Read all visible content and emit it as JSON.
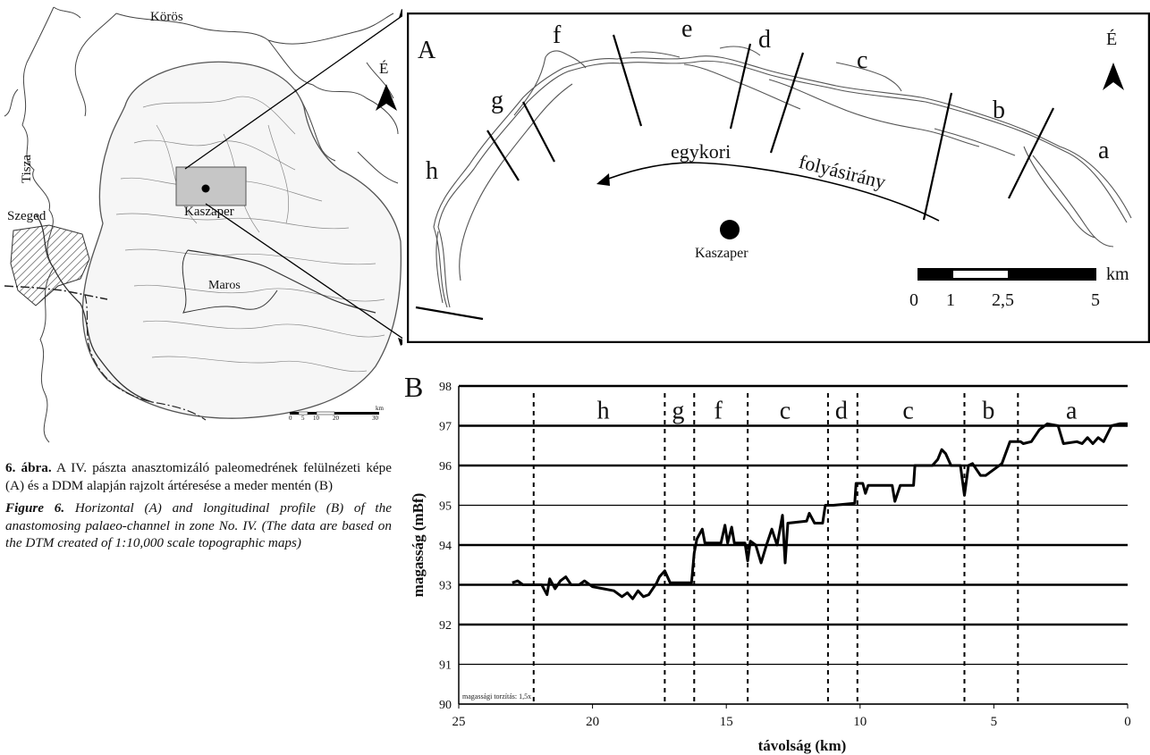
{
  "overview_map": {
    "labels": {
      "koros": "Körös",
      "tisza": "Tisza",
      "szeged": "Szeged",
      "kaszaper": "Kaszaper",
      "maros": "Maros",
      "north": "É"
    },
    "scale": {
      "ticks": [
        "0",
        "5",
        "10",
        "20",
        "30"
      ],
      "unit": "km"
    }
  },
  "panel_a": {
    "panel_label": "A",
    "north": "É",
    "segment_labels": [
      "a",
      "b",
      "c",
      "d",
      "e",
      "f",
      "g",
      "h"
    ],
    "flow_label_1": "egykori",
    "flow_label_2": "folyásirány",
    "town": "Kaszaper",
    "scale": {
      "ticks": [
        "0",
        "1",
        "2,5",
        "5"
      ],
      "unit": "km"
    }
  },
  "caption": {
    "hu_label": "6. ábra.",
    "hu_text": "A IV. pászta anasztomizáló paleomed­rének felülnézeti képe (A) és a DDM alapján rajzolt ártéresése a meder mentén (B)",
    "en_label": "Figure 6.",
    "en_text": "Horizontal (A) and longitudinal profile (B) of the anastomosing palaeo-channel in zone No. IV. (The data are based on the DTM created of 1:10,000 scale topographic maps)"
  },
  "chart_data": {
    "type": "line",
    "panel_label": "B",
    "xlabel": "távolság (km)",
    "ylabel": "magasság (mBf)",
    "xlim": [
      25,
      0
    ],
    "ylim": [
      90,
      98
    ],
    "xticks": [
      "25",
      "20",
      "15",
      "10",
      "5",
      "0"
    ],
    "yticks": [
      "90",
      "91",
      "92",
      "93",
      "94",
      "95",
      "96",
      "97",
      "98"
    ],
    "note": "magassági torzítás: 1,5x",
    "segment_boundaries_km": [
      22.2,
      17.3,
      16.2,
      14.2,
      11.2,
      10.1,
      6.1,
      4.1
    ],
    "segment_labels": [
      {
        "label": "h",
        "x": 19.6
      },
      {
        "label": "g",
        "x": 16.8
      },
      {
        "label": "f",
        "x": 15.3
      },
      {
        "label": "c",
        "x": 12.8
      },
      {
        "label": "d",
        "x": 10.7
      },
      {
        "label": "c",
        "x": 8.2
      },
      {
        "label": "b",
        "x": 5.2
      },
      {
        "label": "a",
        "x": 2.1
      }
    ],
    "series": [
      {
        "values": [
          [
            23.0,
            93.05
          ],
          [
            22.8,
            93.1
          ],
          [
            22.6,
            93.0
          ],
          [
            21.9,
            93.0
          ],
          [
            21.7,
            92.75
          ],
          [
            21.6,
            93.15
          ],
          [
            21.4,
            92.9
          ],
          [
            21.2,
            93.1
          ],
          [
            21.0,
            93.2
          ],
          [
            20.8,
            93.0
          ],
          [
            20.5,
            93.0
          ],
          [
            20.3,
            93.1
          ],
          [
            20.0,
            92.95
          ],
          [
            19.6,
            92.9
          ],
          [
            19.2,
            92.85
          ],
          [
            18.9,
            92.7
          ],
          [
            18.7,
            92.8
          ],
          [
            18.5,
            92.65
          ],
          [
            18.3,
            92.85
          ],
          [
            18.1,
            92.7
          ],
          [
            17.9,
            92.75
          ],
          [
            17.6,
            93.05
          ],
          [
            17.5,
            93.2
          ],
          [
            17.3,
            93.35
          ],
          [
            17.1,
            93.05
          ],
          [
            16.3,
            93.05
          ],
          [
            16.2,
            93.8
          ],
          [
            16.1,
            94.15
          ],
          [
            15.9,
            94.4
          ],
          [
            15.8,
            94.05
          ],
          [
            15.2,
            94.05
          ],
          [
            15.05,
            94.5
          ],
          [
            14.95,
            94.05
          ],
          [
            14.8,
            94.45
          ],
          [
            14.7,
            94.05
          ],
          [
            14.3,
            94.05
          ],
          [
            14.2,
            93.6
          ],
          [
            14.1,
            94.1
          ],
          [
            13.9,
            94.0
          ],
          [
            13.7,
            93.55
          ],
          [
            13.5,
            94.0
          ],
          [
            13.3,
            94.4
          ],
          [
            13.1,
            94.0
          ],
          [
            12.9,
            94.75
          ],
          [
            12.8,
            93.55
          ],
          [
            12.7,
            94.55
          ],
          [
            12.0,
            94.6
          ],
          [
            11.9,
            94.8
          ],
          [
            11.7,
            94.55
          ],
          [
            11.4,
            94.55
          ],
          [
            11.3,
            95.0
          ],
          [
            11.0,
            95.0
          ],
          [
            10.2,
            95.05
          ],
          [
            10.15,
            95.55
          ],
          [
            9.9,
            95.55
          ],
          [
            9.8,
            95.3
          ],
          [
            9.7,
            95.5
          ],
          [
            8.8,
            95.5
          ],
          [
            8.7,
            95.1
          ],
          [
            8.5,
            95.5
          ],
          [
            8.0,
            95.5
          ],
          [
            7.95,
            96.0
          ],
          [
            7.3,
            96.0
          ],
          [
            7.1,
            96.15
          ],
          [
            6.95,
            96.4
          ],
          [
            6.8,
            96.3
          ],
          [
            6.6,
            96.0
          ],
          [
            6.25,
            96.0
          ],
          [
            6.1,
            95.25
          ],
          [
            5.95,
            96.0
          ],
          [
            5.8,
            96.05
          ],
          [
            5.5,
            95.75
          ],
          [
            5.3,
            95.75
          ],
          [
            5.0,
            95.9
          ],
          [
            4.7,
            96.05
          ],
          [
            4.4,
            96.6
          ],
          [
            4.0,
            96.6
          ],
          [
            3.9,
            96.55
          ],
          [
            3.6,
            96.6
          ],
          [
            3.3,
            96.9
          ],
          [
            3.0,
            97.05
          ],
          [
            2.6,
            97.0
          ],
          [
            2.4,
            96.55
          ],
          [
            1.9,
            96.6
          ],
          [
            1.7,
            96.55
          ],
          [
            1.5,
            96.7
          ],
          [
            1.3,
            96.55
          ],
          [
            1.1,
            96.7
          ],
          [
            0.9,
            96.6
          ],
          [
            0.6,
            97.0
          ],
          [
            0.3,
            97.05
          ],
          [
            0.0,
            97.05
          ]
        ]
      }
    ]
  }
}
